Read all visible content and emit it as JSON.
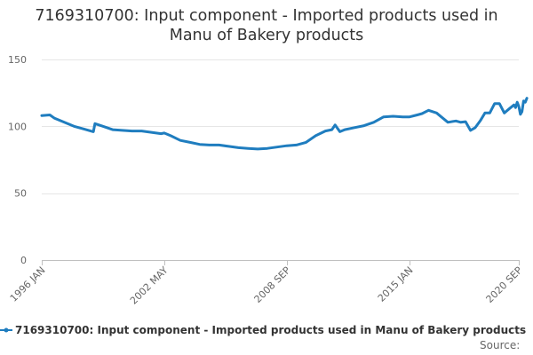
{
  "title_line1": "7169310700: Input component - Imported products used in",
  "title_line2": "Manu of Bakery products",
  "source_label": "Source:",
  "colors": {
    "series": "#1f7dbf",
    "grid": "#e6e6e6",
    "axis_text": "#666666",
    "title_text": "#333333"
  },
  "chart_data": {
    "type": "line",
    "title": "7169310700: Input component - Imported products used in Manu of Bakery products",
    "xlabel": "",
    "ylabel": "",
    "ylim": [
      0,
      150
    ],
    "y_ticks": [
      0,
      50,
      100,
      150
    ],
    "x_range": [
      "1996-01",
      "2020-09"
    ],
    "x_tick_labels": [
      {
        "label": "1996 JAN",
        "date": "1996-01"
      },
      {
        "label": "2002 MAY",
        "date": "2002-05"
      },
      {
        "label": "2008 SEP",
        "date": "2008-09"
      },
      {
        "label": "2015 JAN",
        "date": "2015-01"
      },
      {
        "label": "2020 SEP",
        "date": "2020-09"
      }
    ],
    "grid": true,
    "legend_position": "bottom",
    "series": [
      {
        "name": "7169310700: Input component - Imported products used in Manu of Bakery products",
        "color": "#1f7dbf",
        "points": [
          [
            "1996-01",
            108
          ],
          [
            "1996-06",
            108.5
          ],
          [
            "1996-09",
            106
          ],
          [
            "1997-03",
            103
          ],
          [
            "1997-09",
            100
          ],
          [
            "1998-03",
            98
          ],
          [
            "1998-09",
            96
          ],
          [
            "1998-10",
            102
          ],
          [
            "1999-03",
            100
          ],
          [
            "1999-09",
            97.5
          ],
          [
            "2000-03",
            97
          ],
          [
            "2000-09",
            96.5
          ],
          [
            "2001-03",
            96.5
          ],
          [
            "2001-09",
            95.5
          ],
          [
            "2002-03",
            94.5
          ],
          [
            "2002-05",
            95
          ],
          [
            "2002-09",
            93
          ],
          [
            "2003-03",
            89.5
          ],
          [
            "2003-09",
            88
          ],
          [
            "2004-03",
            86.5
          ],
          [
            "2004-09",
            86
          ],
          [
            "2005-03",
            86
          ],
          [
            "2005-09",
            85
          ],
          [
            "2006-03",
            84
          ],
          [
            "2006-09",
            83.5
          ],
          [
            "2007-03",
            83
          ],
          [
            "2007-09",
            83.5
          ],
          [
            "2008-03",
            84.5
          ],
          [
            "2008-09",
            85.5
          ],
          [
            "2009-03",
            86
          ],
          [
            "2009-09",
            88
          ],
          [
            "2010-03",
            93
          ],
          [
            "2010-09",
            96.5
          ],
          [
            "2011-01",
            97.5
          ],
          [
            "2011-03",
            101
          ],
          [
            "2011-06",
            96
          ],
          [
            "2011-09",
            97.5
          ],
          [
            "2012-03",
            99
          ],
          [
            "2012-09",
            100.5
          ],
          [
            "2013-03",
            103
          ],
          [
            "2013-09",
            107
          ],
          [
            "2014-03",
            107.5
          ],
          [
            "2014-09",
            107
          ],
          [
            "2015-01",
            107
          ],
          [
            "2015-06",
            108.5
          ],
          [
            "2015-09",
            109.5
          ],
          [
            "2016-01",
            112
          ],
          [
            "2016-06",
            110
          ],
          [
            "2016-09",
            107
          ],
          [
            "2017-01",
            103
          ],
          [
            "2017-06",
            104
          ],
          [
            "2017-09",
            103
          ],
          [
            "2017-12",
            103.5
          ],
          [
            "2018-03",
            97
          ],
          [
            "2018-06",
            99
          ],
          [
            "2018-09",
            104
          ],
          [
            "2018-12",
            110
          ],
          [
            "2019-03",
            110
          ],
          [
            "2019-06",
            117
          ],
          [
            "2019-09",
            117
          ],
          [
            "2019-12",
            110
          ],
          [
            "2020-03",
            113
          ],
          [
            "2020-06",
            116
          ],
          [
            "2020-07",
            114
          ],
          [
            "2020-08",
            118
          ],
          [
            "2020-09",
            115
          ],
          [
            "2020-10",
            109
          ],
          [
            "2020-11",
            111
          ],
          [
            "2020-12",
            119
          ],
          [
            "2021-01",
            118
          ],
          [
            "2021-02",
            121
          ]
        ]
      }
    ]
  }
}
